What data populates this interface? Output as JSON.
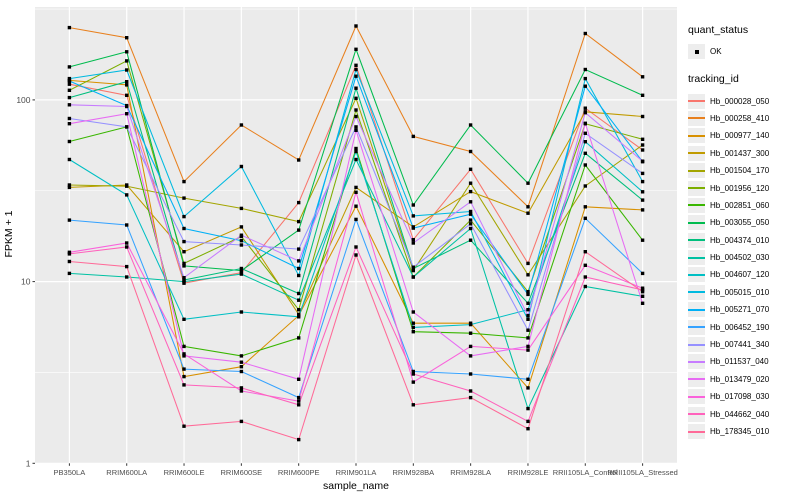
{
  "figure": {
    "xlabel": "sample_name",
    "ylabel": "FPKM + 1",
    "panel_background": "#EBEBEB",
    "grid_color": "#FFFFFF",
    "tick_label_color": "#4D4D4D",
    "legend": {
      "quant_status_title": "quant_status",
      "quant_status_items": [
        {
          "label": "OK",
          "shape": "square-point",
          "color": "#000000"
        }
      ],
      "tracking_id_title": "tracking_id"
    }
  },
  "chart_data": {
    "type": "line",
    "x_type": "categorical",
    "xlabel": "sample_name",
    "ylabel": "FPKM + 1",
    "y_scale": "log10",
    "ylim": [
      1,
      300
    ],
    "y_major_breaks": [
      1,
      10,
      100
    ],
    "y_tick_labels": [
      "1",
      "10",
      "100"
    ],
    "y_minor_breaks": [
      3.162,
      31.623,
      316.23
    ],
    "grid": true,
    "legend_position": "right",
    "point_color": "#000000",
    "point_shape": "small-black-square",
    "categories": [
      "PB350LA",
      "RRIM600LA",
      "RRIM600LE",
      "RRIM600SE",
      "RRIM600PE",
      "RRIM901LA",
      "RRIM928BA",
      "RRIM928LA",
      "RRIM928LE",
      "RRII105LA_Control",
      "RRII105LA_Stressed"
    ],
    "series": [
      {
        "name": "Hb_000028_050",
        "color": "#F8766D",
        "values": [
          122,
          106,
          9.8,
          11.2,
          27.2,
          155,
          17.0,
          41.5,
          12.6,
          90,
          53
        ]
      },
      {
        "name": "Hb_000258_410",
        "color": "#E8801E",
        "values": [
          250,
          220,
          35.5,
          72.8,
          46.7,
          255,
          63,
          52,
          25.8,
          232,
          134
        ]
      },
      {
        "name": "Hb_000977_140",
        "color": "#D89000",
        "values": [
          128,
          121,
          3.0,
          3.4,
          6.5,
          26,
          5.9,
          5.9,
          2.6,
          25.8,
          24.8
        ]
      },
      {
        "name": "Hb_001437_300",
        "color": "#C09B00",
        "values": [
          33,
          34,
          14.6,
          20,
          6.6,
          33,
          20,
          31.3,
          23.8,
          86,
          81
        ]
      },
      {
        "name": "Hb_001504_170",
        "color": "#A3A500",
        "values": [
          34,
          33.5,
          28.8,
          25.3,
          21.4,
          102,
          11.5,
          34.8,
          10.9,
          33.6,
          56.5
        ]
      },
      {
        "name": "Hb_001956_120",
        "color": "#7CAE00",
        "values": [
          113,
          164,
          12.6,
          17.7,
          7.0,
          88,
          10.6,
          21.8,
          8.8,
          74,
          60.7
        ]
      },
      {
        "name": "Hb_002851_060",
        "color": "#39B600",
        "values": [
          59,
          71,
          4.4,
          3.9,
          4.9,
          54,
          5.3,
          5.2,
          4.9,
          43.8,
          16.9
        ]
      },
      {
        "name": "Hb_003055_050",
        "color": "#00BB4E",
        "values": [
          152,
          184,
          12.2,
          11.5,
          19.2,
          190,
          26.4,
          72.8,
          34.8,
          147,
          106
        ]
      },
      {
        "name": "Hb_004374_010",
        "color": "#00BF7D",
        "values": [
          103,
          126,
          10.2,
          11.8,
          8.6,
          116,
          11.8,
          16.9,
          7.6,
          50.8,
          28.1
        ]
      },
      {
        "name": "Hb_004502_030",
        "color": "#00C1A3",
        "values": [
          11.1,
          10.6,
          10.0,
          11.0,
          7.9,
          47,
          10.6,
          19.6,
          2.0,
          9.4,
          8.3
        ]
      },
      {
        "name": "Hb_004607_120",
        "color": "#00BFC4",
        "values": [
          47,
          30,
          6.2,
          6.8,
          6.4,
          52,
          5.6,
          5.8,
          7.0,
          58.9,
          31.2
        ]
      },
      {
        "name": "Hb_005015_010",
        "color": "#00BAE0",
        "values": [
          131,
          146,
          22.8,
          43,
          10.8,
          147,
          23,
          24.3,
          6.2,
          131,
          35.5
        ]
      },
      {
        "name": "Hb_005271_070",
        "color": "#00B0F6",
        "values": [
          127,
          93,
          19.6,
          16.8,
          11.8,
          135,
          19.7,
          23.5,
          8.5,
          119,
          45.7
        ]
      },
      {
        "name": "Hb_006452_190",
        "color": "#35A2FF",
        "values": [
          21.8,
          20.5,
          3.3,
          3.2,
          2.3,
          22,
          3.2,
          3.1,
          2.9,
          22.3,
          11.1
        ]
      },
      {
        "name": "Hb_007441_340",
        "color": "#9590FF",
        "values": [
          79,
          71,
          16.6,
          15.9,
          15.1,
          71,
          12.0,
          20.8,
          5.4,
          65.5,
          39.4
        ]
      },
      {
        "name": "Hb_011537_040",
        "color": "#C77CFF",
        "values": [
          94,
          92,
          10.5,
          18.0,
          13.0,
          81,
          16.3,
          27.5,
          6.5,
          85,
          46
        ]
      },
      {
        "name": "Hb_013479_020",
        "color": "#E76BF3",
        "values": [
          74,
          84,
          3.9,
          3.6,
          2.9,
          68,
          6.8,
          3.9,
          4.4,
          74.3,
          7.6
        ]
      },
      {
        "name": "Hb_017098_030",
        "color": "#FA62DB",
        "values": [
          14.5,
          16.3,
          4.0,
          2.5,
          2.2,
          31,
          2.8,
          4.4,
          4.2,
          12.3,
          9.2
        ]
      },
      {
        "name": "Hb_044662_040",
        "color": "#FF62BC",
        "values": [
          14.2,
          15.5,
          2.7,
          2.6,
          2.1,
          15.5,
          3.1,
          2.5,
          1.7,
          10.6,
          9.0
        ]
      },
      {
        "name": "Hb_178345_010",
        "color": "#FF6A98",
        "values": [
          12.9,
          12.1,
          1.6,
          1.7,
          1.35,
          14,
          2.1,
          2.3,
          1.55,
          14.6,
          8.8
        ]
      }
    ]
  }
}
